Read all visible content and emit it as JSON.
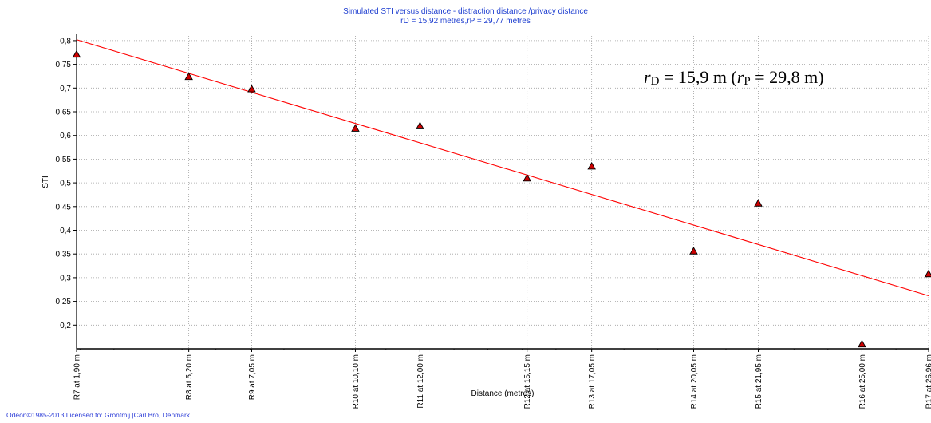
{
  "chart_data": {
    "type": "scatter",
    "title": "Simulated STI versus distance - distraction distance /privacy distance",
    "subtitle": "rD = 15,92 metres,rP = 29,77 metres",
    "xlabel": "Distance (metres)",
    "ylabel": "STI",
    "xlim": [
      1.9,
      26.96
    ],
    "ylim": [
      0.15,
      0.815
    ],
    "yticks": [
      0.2,
      0.25,
      0.3,
      0.35,
      0.4,
      0.45,
      0.5,
      0.55,
      0.6,
      0.65,
      0.7,
      0.75,
      0.8
    ],
    "ytick_labels": [
      "0,2",
      "0,25",
      "0,3",
      "0,35",
      "0,4",
      "0,45",
      "0,5",
      "0,55",
      "0,6",
      "0,65",
      "0,7",
      "0,75",
      "0,8"
    ],
    "categories": [
      "R7 at 1,90 m",
      "R8 at 5,20 m",
      "R9 at 7,05 m",
      "R10 at 10,10 m",
      "R11 at 12,00 m",
      "R12 at 15,15 m",
      "R13 at 17,05 m",
      "R14 at 20,05 m",
      "R15 at 21,95 m",
      "R16 at 25,00 m",
      "R17 at 26,96 m"
    ],
    "x": [
      1.9,
      5.2,
      7.05,
      10.1,
      12.0,
      15.15,
      17.05,
      20.05,
      21.95,
      25.0,
      26.96
    ],
    "series": [
      {
        "values": [
          0.771,
          0.724,
          0.698,
          0.615,
          0.62,
          0.51,
          0.535,
          0.356,
          0.457,
          0.16,
          0.308
        ],
        "color": "#cc0000",
        "marker": "triangle"
      }
    ],
    "fit_line": {
      "x": [
        1.9,
        26.96
      ],
      "y": [
        0.802,
        0.262
      ],
      "color": "#ff0000"
    },
    "annotation": {
      "r1": "r",
      "sub1": "D",
      "mid": " = 15,9 m (",
      "r2": "r",
      "sub2": "P",
      "end": " = 29,8 m)"
    },
    "grid": true,
    "grid_color": "#a0a0a0",
    "legend": "none"
  },
  "footer": "Odeon©1985-2013   Licensed to: Grontmij |Carl Bro, Denmark"
}
